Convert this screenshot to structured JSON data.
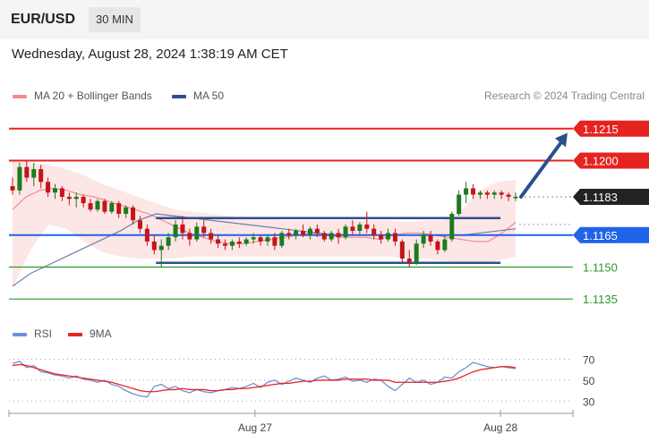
{
  "header": {
    "symbol": "EUR/USD",
    "timeframe": "30 MIN"
  },
  "timestamp": "Wednesday, August 28, 2024 1:38:19 AM CET",
  "legend": {
    "ma20": {
      "label": "MA 20 + Bollinger Bands",
      "color": "#f48a8a"
    },
    "ma50": {
      "label": "MA 50",
      "color": "#2c4f8c"
    }
  },
  "credit": "Research © 2024 Trading Central",
  "rsi_legend": {
    "rsi": {
      "label": "RSI",
      "color": "#6f8fd8"
    },
    "ma9": {
      "label": "9MA",
      "color": "#e6231f"
    }
  },
  "x_ticks": [
    "Aug 27",
    "Aug 28"
  ],
  "chart_data": [
    {
      "type": "candlestick",
      "title": "",
      "ylim": [
        1.1125,
        1.1225
      ],
      "levels": [
        {
          "label": "1.1215",
          "value": 1.1215,
          "kind": "resistance",
          "color": "#e6231f"
        },
        {
          "label": "1.1200",
          "value": 1.12,
          "kind": "resistance",
          "color": "#e6231f"
        },
        {
          "label": "1.1183",
          "value": 1.1183,
          "kind": "last-price",
          "color": "#222222"
        },
        {
          "label": "1.1165",
          "value": 1.1165,
          "kind": "pivot",
          "color": "#1f63e8"
        },
        {
          "label": "1.1150",
          "value": 1.115,
          "kind": "support",
          "color": "#2a9a2a"
        },
        {
          "label": "1.1135",
          "value": 1.1135,
          "kind": "support",
          "color": "#2a9a2a"
        }
      ],
      "candles": [
        [
          1.1188,
          1.1192,
          1.1184,
          1.1186
        ],
        [
          1.1186,
          1.1199,
          1.1184,
          1.1197
        ],
        [
          1.1197,
          1.12,
          1.119,
          1.1192
        ],
        [
          1.1192,
          1.1199,
          1.1188,
          1.1196
        ],
        [
          1.1196,
          1.1198,
          1.1187,
          1.119
        ],
        [
          1.119,
          1.1192,
          1.1183,
          1.1185
        ],
        [
          1.1185,
          1.1189,
          1.1182,
          1.1187
        ],
        [
          1.1187,
          1.1188,
          1.1181,
          1.1183
        ],
        [
          1.1183,
          1.1185,
          1.1179,
          1.1182
        ],
        [
          1.1182,
          1.1185,
          1.1178,
          1.1183
        ],
        [
          1.1183,
          1.1184,
          1.1178,
          1.118
        ],
        [
          1.118,
          1.1182,
          1.1176,
          1.1177
        ],
        [
          1.1177,
          1.1182,
          1.1176,
          1.1181
        ],
        [
          1.1181,
          1.1182,
          1.1175,
          1.1176
        ],
        [
          1.1176,
          1.1181,
          1.1175,
          1.118
        ],
        [
          1.118,
          1.1181,
          1.1173,
          1.1175
        ],
        [
          1.1175,
          1.1179,
          1.1173,
          1.1178
        ],
        [
          1.1178,
          1.1179,
          1.117,
          1.1172
        ],
        [
          1.1172,
          1.1174,
          1.1166,
          1.1168
        ],
        [
          1.1168,
          1.117,
          1.116,
          1.1162
        ],
        [
          1.1162,
          1.1165,
          1.1156,
          1.1158
        ],
        [
          1.1158,
          1.1163,
          1.115,
          1.116
        ],
        [
          1.116,
          1.1166,
          1.1158,
          1.1164
        ],
        [
          1.1164,
          1.1172,
          1.1162,
          1.117
        ],
        [
          1.117,
          1.1174,
          1.1163,
          1.1166
        ],
        [
          1.1166,
          1.1168,
          1.116,
          1.1163
        ],
        [
          1.1163,
          1.1171,
          1.1162,
          1.1169
        ],
        [
          1.1169,
          1.1172,
          1.1164,
          1.1166
        ],
        [
          1.1166,
          1.1168,
          1.1161,
          1.1163
        ],
        [
          1.1163,
          1.1165,
          1.1159,
          1.1161
        ],
        [
          1.1161,
          1.1163,
          1.1158,
          1.116
        ],
        [
          1.116,
          1.1163,
          1.1158,
          1.1162
        ],
        [
          1.1162,
          1.1164,
          1.1159,
          1.1161
        ],
        [
          1.1161,
          1.1164,
          1.116,
          1.1163
        ],
        [
          1.1163,
          1.1166,
          1.1161,
          1.1164
        ],
        [
          1.1164,
          1.1165,
          1.116,
          1.1162
        ],
        [
          1.1162,
          1.1165,
          1.116,
          1.1164
        ],
        [
          1.1164,
          1.1166,
          1.1158,
          1.116
        ],
        [
          1.116,
          1.1167,
          1.1159,
          1.1166
        ],
        [
          1.1166,
          1.1168,
          1.1163,
          1.1165
        ],
        [
          1.1165,
          1.1168,
          1.1163,
          1.1167
        ],
        [
          1.1167,
          1.117,
          1.1164,
          1.1165
        ],
        [
          1.1165,
          1.1169,
          1.1163,
          1.1168
        ],
        [
          1.1168,
          1.117,
          1.1164,
          1.1166
        ],
        [
          1.1166,
          1.1167,
          1.1162,
          1.1163
        ],
        [
          1.1163,
          1.1167,
          1.1162,
          1.1166
        ],
        [
          1.1166,
          1.1168,
          1.1161,
          1.1164
        ],
        [
          1.1164,
          1.117,
          1.1163,
          1.1169
        ],
        [
          1.1169,
          1.1172,
          1.1165,
          1.1167
        ],
        [
          1.1167,
          1.1171,
          1.1165,
          1.117
        ],
        [
          1.117,
          1.1176,
          1.1166,
          1.1168
        ],
        [
          1.1168,
          1.117,
          1.1163,
          1.1165
        ],
        [
          1.1165,
          1.1167,
          1.1161,
          1.1163
        ],
        [
          1.1163,
          1.1168,
          1.1162,
          1.1166
        ],
        [
          1.1166,
          1.1168,
          1.116,
          1.1162
        ],
        [
          1.1162,
          1.1163,
          1.1152,
          1.1154
        ],
        [
          1.1154,
          1.1158,
          1.115,
          1.1152
        ],
        [
          1.1152,
          1.1163,
          1.1151,
          1.1161
        ],
        [
          1.1161,
          1.1167,
          1.1159,
          1.1165
        ],
        [
          1.1165,
          1.1167,
          1.116,
          1.1162
        ],
        [
          1.1162,
          1.1163,
          1.1156,
          1.1158
        ],
        [
          1.1158,
          1.1165,
          1.1157,
          1.1163
        ],
        [
          1.1163,
          1.1176,
          1.1162,
          1.1175
        ],
        [
          1.1175,
          1.1186,
          1.1174,
          1.1184
        ],
        [
          1.1184,
          1.119,
          1.118,
          1.1187
        ],
        [
          1.1187,
          1.1189,
          1.1182,
          1.1184
        ],
        [
          1.1184,
          1.1186,
          1.1182,
          1.1185
        ],
        [
          1.1185,
          1.1186,
          1.1182,
          1.1184
        ],
        [
          1.1184,
          1.1186,
          1.1182,
          1.1185
        ],
        [
          1.1185,
          1.1186,
          1.1182,
          1.1184
        ],
        [
          1.1184,
          1.1185,
          1.1181,
          1.1183
        ],
        [
          1.1183,
          1.1185,
          1.1181,
          1.1183
        ]
      ],
      "ma20": [
        1.1177,
        1.1183,
        1.1186,
        1.1187,
        1.1186,
        1.1184,
        1.1183,
        1.1181,
        1.1179,
        1.1177,
        1.1175,
        1.1172,
        1.1169,
        1.1166,
        1.1164,
        1.1162,
        1.1161,
        1.1161,
        1.1162,
        1.1163,
        1.1164,
        1.1165,
        1.1166,
        1.1165,
        1.1164,
        1.1164,
        1.1164,
        1.1163,
        1.1165,
        1.1166,
        1.1166,
        1.1165,
        1.1164,
        1.1163,
        1.1162,
        1.1162,
        1.1166,
        1.1171
      ],
      "ma50": [
        1.1141,
        1.1147,
        1.1151,
        1.1155,
        1.1159,
        1.1163,
        1.1167,
        1.1172,
        1.1175,
        1.1174,
        1.1173,
        1.1172,
        1.1171,
        1.117,
        1.1169,
        1.1168,
        1.1167,
        1.1166,
        1.1165,
        1.1165,
        1.1165,
        1.1165,
        1.1165,
        1.1165,
        1.1165,
        1.1165,
        1.1166,
        1.1167,
        1.1168
      ],
      "bollinger_upper": [
        1.12,
        1.1199,
        1.1198,
        1.1196,
        1.1193,
        1.1189,
        1.1186,
        1.1183,
        1.118,
        1.1177,
        1.1176,
        1.1175,
        1.1174,
        1.1173,
        1.1173,
        1.1172,
        1.1172,
        1.1172,
        1.1172,
        1.1172,
        1.1172,
        1.1172,
        1.1171,
        1.1172,
        1.1172,
        1.1177,
        1.1186,
        1.119,
        1.1191
      ],
      "bollinger_lower": [
        1.114,
        1.1158,
        1.117,
        1.1168,
        1.1162,
        1.1157,
        1.1155,
        1.1154,
        1.1154,
        1.1154,
        1.1155,
        1.1155,
        1.1155,
        1.1155,
        1.1155,
        1.1155,
        1.1155,
        1.1155,
        1.1155,
        1.1155,
        1.1155,
        1.1155,
        1.1154,
        1.1154,
        1.1153,
        1.1152,
        1.1152,
        1.1153,
        1.1155
      ],
      "trend_channel": {
        "upper": 1.1173,
        "lower": 1.1152
      },
      "forecast_arrow": {
        "from": 1.1183,
        "to": 1.1213
      }
    },
    {
      "type": "line",
      "title": "",
      "ylim": [
        20,
        85
      ],
      "ticks": [
        70,
        50,
        30
      ],
      "series": [
        {
          "name": "RSI",
          "values": [
            66,
            68,
            62,
            64,
            58,
            57,
            55,
            54,
            52,
            54,
            51,
            50,
            48,
            50,
            46,
            44,
            40,
            37,
            35,
            34,
            44,
            46,
            42,
            44,
            40,
            38,
            41,
            39,
            38,
            40,
            41,
            43,
            42,
            44,
            47,
            43,
            48,
            50,
            46,
            49,
            52,
            50,
            48,
            52,
            54,
            50,
            51,
            53,
            49,
            50,
            48,
            51,
            50,
            44,
            40,
            46,
            52,
            48,
            50,
            46,
            48,
            53,
            52,
            58,
            62,
            67,
            65,
            63,
            62,
            63,
            62,
            61
          ]
        },
        {
          "name": "9MA",
          "values": [
            64,
            65,
            64,
            62,
            60,
            58,
            56,
            55,
            54,
            53,
            52,
            51,
            50,
            49,
            48,
            46,
            44,
            42,
            40,
            39,
            39,
            40,
            41,
            41,
            42,
            41,
            41,
            41,
            40,
            40,
            41,
            41,
            42,
            42,
            43,
            44,
            45,
            46,
            47,
            47,
            48,
            49,
            49,
            50,
            50,
            50,
            50,
            51,
            51,
            51,
            51,
            50,
            50,
            50,
            48,
            48,
            48,
            48,
            48,
            48,
            48,
            49,
            50,
            52,
            55,
            58,
            60,
            61,
            62,
            63,
            63,
            62
          ]
        }
      ]
    }
  ]
}
